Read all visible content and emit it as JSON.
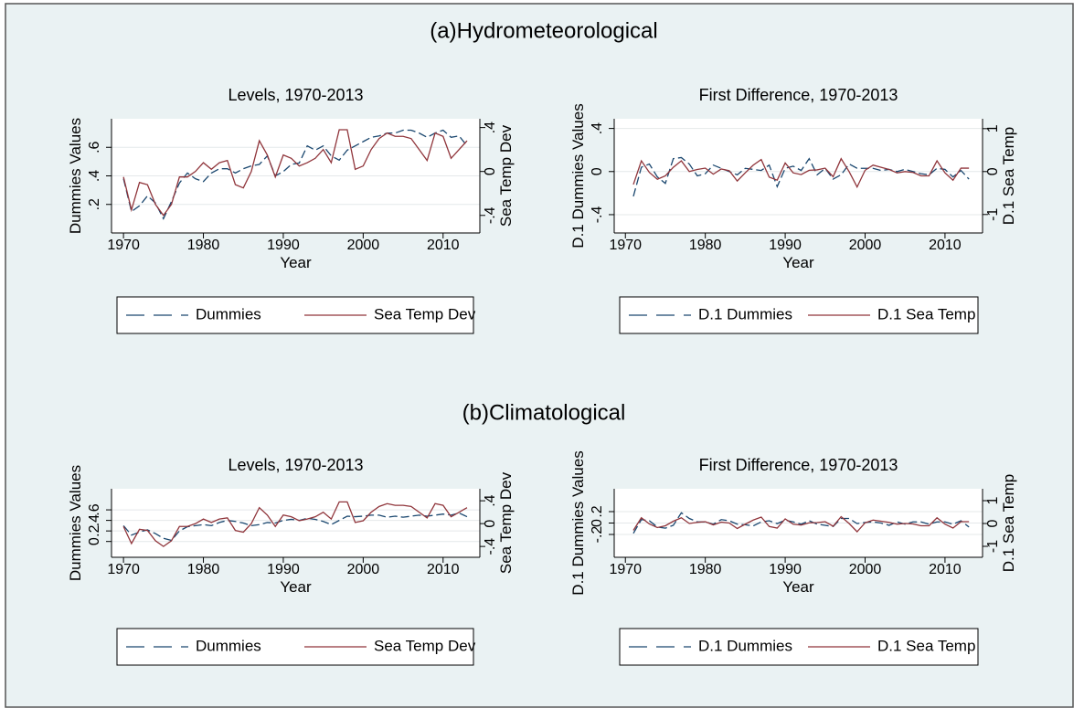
{
  "section_titles": [
    "(a)Hydrometeorological",
    "(b)Climatological"
  ],
  "chart_data": [
    {
      "type": "line",
      "title": "Levels, 1970-2013",
      "x_label": "Year",
      "y_label": "Dummies Values",
      "y2_label": "Sea Temp Dev",
      "x": [
        1970,
        1971,
        1972,
        1973,
        1974,
        1975,
        1976,
        1977,
        1978,
        1979,
        1980,
        1981,
        1982,
        1983,
        1984,
        1985,
        1986,
        1987,
        1988,
        1989,
        1990,
        1991,
        1992,
        1993,
        1994,
        1995,
        1996,
        1997,
        1998,
        1999,
        2000,
        2001,
        2002,
        2003,
        2004,
        2005,
        2006,
        2007,
        2008,
        2009,
        2010,
        2011,
        2012,
        2013
      ],
      "xlim": [
        1968.5,
        2014.6
      ],
      "xticks": [
        1970,
        1980,
        1990,
        2000,
        2010
      ],
      "ylim": [
        0,
        0.8
      ],
      "yticks": [
        {
          "value": 0.2,
          "label": ".2"
        },
        {
          "value": 0.4,
          "label": ".4"
        },
        {
          "value": 0.6,
          "label": ".6"
        }
      ],
      "y2lim": [
        -0.56,
        0.48
      ],
      "y2ticks": [
        {
          "value": -0.4,
          "label": "-.4"
        },
        0,
        {
          "value": 0.4,
          "label": ".4"
        }
      ],
      "grid": true,
      "series": [
        {
          "name": "Dummies",
          "color": "#1a476f",
          "style": "dash",
          "values": [
            0.38,
            0.15,
            0.19,
            0.26,
            0.21,
            0.1,
            0.22,
            0.35,
            0.42,
            0.38,
            0.36,
            0.42,
            0.45,
            0.45,
            0.42,
            0.45,
            0.47,
            0.48,
            0.54,
            0.4,
            0.43,
            0.48,
            0.49,
            0.61,
            0.58,
            0.61,
            0.54,
            0.51,
            0.58,
            0.61,
            0.64,
            0.67,
            0.68,
            0.7,
            0.7,
            0.72,
            0.72,
            0.7,
            0.67,
            0.7,
            0.72,
            0.67,
            0.68,
            0.61
          ]
        },
        {
          "name": "Sea Temp Dev",
          "color": "#90353b",
          "style": "solid",
          "axis": "y2",
          "values": [
            -0.05,
            -0.35,
            -0.1,
            -0.12,
            -0.3,
            -0.4,
            -0.3,
            -0.05,
            -0.05,
            0.0,
            0.08,
            0.02,
            0.08,
            0.1,
            -0.12,
            -0.15,
            0.0,
            0.28,
            0.15,
            -0.05,
            0.15,
            0.12,
            0.05,
            0.08,
            0.12,
            0.2,
            0.08,
            0.38,
            0.38,
            0.02,
            0.05,
            0.2,
            0.3,
            0.35,
            0.32,
            0.32,
            0.3,
            0.2,
            0.1,
            0.35,
            0.32,
            0.12,
            0.2,
            0.28
          ]
        }
      ]
    },
    {
      "type": "line",
      "title": "First Difference, 1970-2013",
      "x_label": "Year",
      "y_label": "D.1 Dummies Values",
      "y2_label": "D.1 Sea Temp",
      "x": [
        1971,
        1972,
        1973,
        1974,
        1975,
        1976,
        1977,
        1978,
        1979,
        1980,
        1981,
        1982,
        1983,
        1984,
        1985,
        1986,
        1987,
        1988,
        1989,
        1990,
        1991,
        1992,
        1993,
        1994,
        1995,
        1996,
        1997,
        1998,
        1999,
        2000,
        2001,
        2002,
        2003,
        2004,
        2005,
        2006,
        2007,
        2008,
        2009,
        2010,
        2011,
        2012,
        2013
      ],
      "xlim": [
        1968.6,
        2014.7
      ],
      "xticks": [
        1970,
        1980,
        1990,
        2000,
        2010
      ],
      "ylim": [
        -0.57,
        0.49
      ],
      "yticks": [
        {
          "value": -0.4,
          "label": "-.4"
        },
        0,
        {
          "value": 0.4,
          "label": ".4"
        }
      ],
      "y2lim": [
        -1.43,
        1.23
      ],
      "y2ticks": [
        -1,
        0,
        1
      ],
      "grid": true,
      "series": [
        {
          "name": "D.1 Dummies",
          "color": "#1a476f",
          "style": "dash",
          "values": [
            -0.23,
            0.04,
            0.07,
            -0.05,
            -0.11,
            0.12,
            0.13,
            0.07,
            -0.04,
            -0.02,
            0.06,
            0.03,
            0,
            -0.03,
            0.03,
            0.02,
            0.01,
            0.06,
            -0.14,
            0.03,
            0.05,
            0.01,
            0.12,
            -0.03,
            0.03,
            -0.07,
            -0.03,
            0.07,
            0.03,
            0.03,
            0.03,
            0.01,
            0.02,
            0,
            0.02,
            0,
            -0.02,
            -0.03,
            0.03,
            0.02,
            -0.05,
            0.01,
            -0.07
          ]
        },
        {
          "name": "D.1 Sea Temp",
          "color": "#90353b",
          "style": "solid",
          "axis": "y2",
          "values": [
            -0.3,
            0.25,
            -0.02,
            -0.18,
            -0.1,
            0.1,
            0.25,
            0,
            0.05,
            0.08,
            -0.06,
            0.06,
            0.02,
            -0.22,
            -0.03,
            0.15,
            0.28,
            -0.13,
            -0.2,
            0.2,
            -0.03,
            -0.07,
            0.03,
            0.04,
            0.08,
            -0.12,
            0.3,
            0,
            -0.36,
            0.03,
            0.15,
            0.1,
            0.05,
            -0.03,
            0,
            -0.02,
            -0.1,
            -0.1,
            0.25,
            -0.03,
            -0.2,
            0.08,
            0.08
          ]
        }
      ]
    },
    {
      "type": "line",
      "title": "Levels, 1970-2013",
      "x_label": "Year",
      "y_label": "Dummies Values",
      "y2_label": "Sea Temp Dev",
      "x": [
        1970,
        1971,
        1972,
        1973,
        1974,
        1975,
        1976,
        1977,
        1978,
        1979,
        1980,
        1981,
        1982,
        1983,
        1984,
        1985,
        1986,
        1987,
        1988,
        1989,
        1990,
        1991,
        1992,
        1993,
        1994,
        1995,
        1996,
        1997,
        1998,
        1999,
        2000,
        2001,
        2002,
        2003,
        2004,
        2005,
        2006,
        2007,
        2008,
        2009,
        2010,
        2011,
        2012,
        2013
      ],
      "xlim": [
        1968.5,
        2014.6
      ],
      "xticks": [
        1970,
        1980,
        1990,
        2000,
        2010
      ],
      "ylim": [
        -0.3,
        1.0
      ],
      "yticks": [
        0,
        {
          "value": 0.2,
          "label": ".2"
        },
        {
          "value": 0.4,
          "label": ".4"
        },
        {
          "value": 0.6,
          "label": ".6"
        }
      ],
      "y2lim": [
        -0.59,
        0.61
      ],
      "y2ticks": [
        {
          "value": -0.4,
          "label": "-.4"
        },
        0,
        {
          "value": 0.4,
          "label": ".4"
        }
      ],
      "grid": true,
      "series": [
        {
          "name": "Dummies",
          "color": "#1a476f",
          "style": "dash",
          "values": [
            0.3,
            0.12,
            0.18,
            0.22,
            0.15,
            0.06,
            0.02,
            0.2,
            0.28,
            0.3,
            0.32,
            0.3,
            0.36,
            0.4,
            0.38,
            0.35,
            0.3,
            0.32,
            0.36,
            0.35,
            0.4,
            0.42,
            0.4,
            0.44,
            0.42,
            0.38,
            0.32,
            0.4,
            0.48,
            0.47,
            0.48,
            0.5,
            0.5,
            0.46,
            0.48,
            0.46,
            0.48,
            0.5,
            0.48,
            0.5,
            0.52,
            0.5,
            0.54,
            0.47
          ]
        },
        {
          "name": "Sea Temp Dev",
          "color": "#90353b",
          "style": "solid",
          "axis": "y2",
          "values": [
            -0.05,
            -0.35,
            -0.1,
            -0.12,
            -0.3,
            -0.4,
            -0.3,
            -0.05,
            -0.05,
            0.0,
            0.08,
            0.02,
            0.08,
            0.1,
            -0.12,
            -0.15,
            0.0,
            0.28,
            0.15,
            -0.05,
            0.15,
            0.12,
            0.05,
            0.08,
            0.12,
            0.2,
            0.08,
            0.38,
            0.38,
            0.02,
            0.05,
            0.2,
            0.3,
            0.35,
            0.32,
            0.32,
            0.3,
            0.2,
            0.1,
            0.35,
            0.32,
            0.12,
            0.2,
            0.28
          ]
        }
      ]
    },
    {
      "type": "line",
      "title": "First Difference, 1970-2013",
      "x_label": "Year",
      "y_label": "D.1 Dummies Values",
      "y2_label": "D.1 Sea Temp",
      "x": [
        1971,
        1972,
        1973,
        1974,
        1975,
        1976,
        1977,
        1978,
        1979,
        1980,
        1981,
        1982,
        1983,
        1984,
        1985,
        1986,
        1987,
        1988,
        1989,
        1990,
        1991,
        1992,
        1993,
        1994,
        1995,
        1996,
        1997,
        1998,
        1999,
        2000,
        2001,
        2002,
        2003,
        2004,
        2005,
        2006,
        2007,
        2008,
        2009,
        2010,
        2011,
        2012,
        2013
      ],
      "xlim": [
        1968.6,
        2014.7
      ],
      "xticks": [
        1970,
        1980,
        1990,
        2000,
        2010
      ],
      "ylim": [
        -0.6,
        0.6
      ],
      "yticks": [
        {
          "value": -0.2,
          "label": "-.2"
        },
        0,
        {
          "value": 0.2,
          "label": ".2"
        }
      ],
      "y2lim": [
        -1.48,
        1.52
      ],
      "y2ticks": [
        -1,
        0,
        1
      ],
      "grid": true,
      "series": [
        {
          "name": "D.1 Dummies",
          "color": "#1a476f",
          "style": "dash",
          "values": [
            -0.18,
            0.06,
            0.04,
            -0.07,
            -0.09,
            -0.04,
            0.18,
            0.08,
            0.02,
            0.02,
            -0.02,
            0.06,
            0.04,
            -0.02,
            -0.03,
            -0.05,
            0.02,
            0.04,
            -0.01,
            0.05,
            0.02,
            -0.02,
            0.04,
            -0.02,
            -0.04,
            -0.06,
            0.08,
            0.08,
            -0.01,
            0.01,
            0.02,
            0,
            -0.04,
            0.02,
            -0.02,
            0.02,
            0.02,
            -0.02,
            0.02,
            0.02,
            -0.02,
            0.04,
            -0.07
          ]
        },
        {
          "name": "D.1 Sea Temp",
          "color": "#90353b",
          "style": "solid",
          "axis": "y2",
          "values": [
            -0.3,
            0.25,
            -0.02,
            -0.18,
            -0.1,
            0.1,
            0.25,
            0,
            0.05,
            0.08,
            -0.06,
            0.06,
            0.02,
            -0.22,
            -0.03,
            0.15,
            0.28,
            -0.13,
            -0.2,
            0.2,
            -0.03,
            -0.07,
            0.03,
            0.04,
            0.08,
            -0.12,
            0.3,
            0,
            -0.36,
            0.03,
            0.15,
            0.1,
            0.05,
            -0.03,
            0,
            -0.02,
            -0.1,
            -0.1,
            0.25,
            -0.03,
            -0.2,
            0.08,
            0.08
          ]
        }
      ]
    }
  ]
}
